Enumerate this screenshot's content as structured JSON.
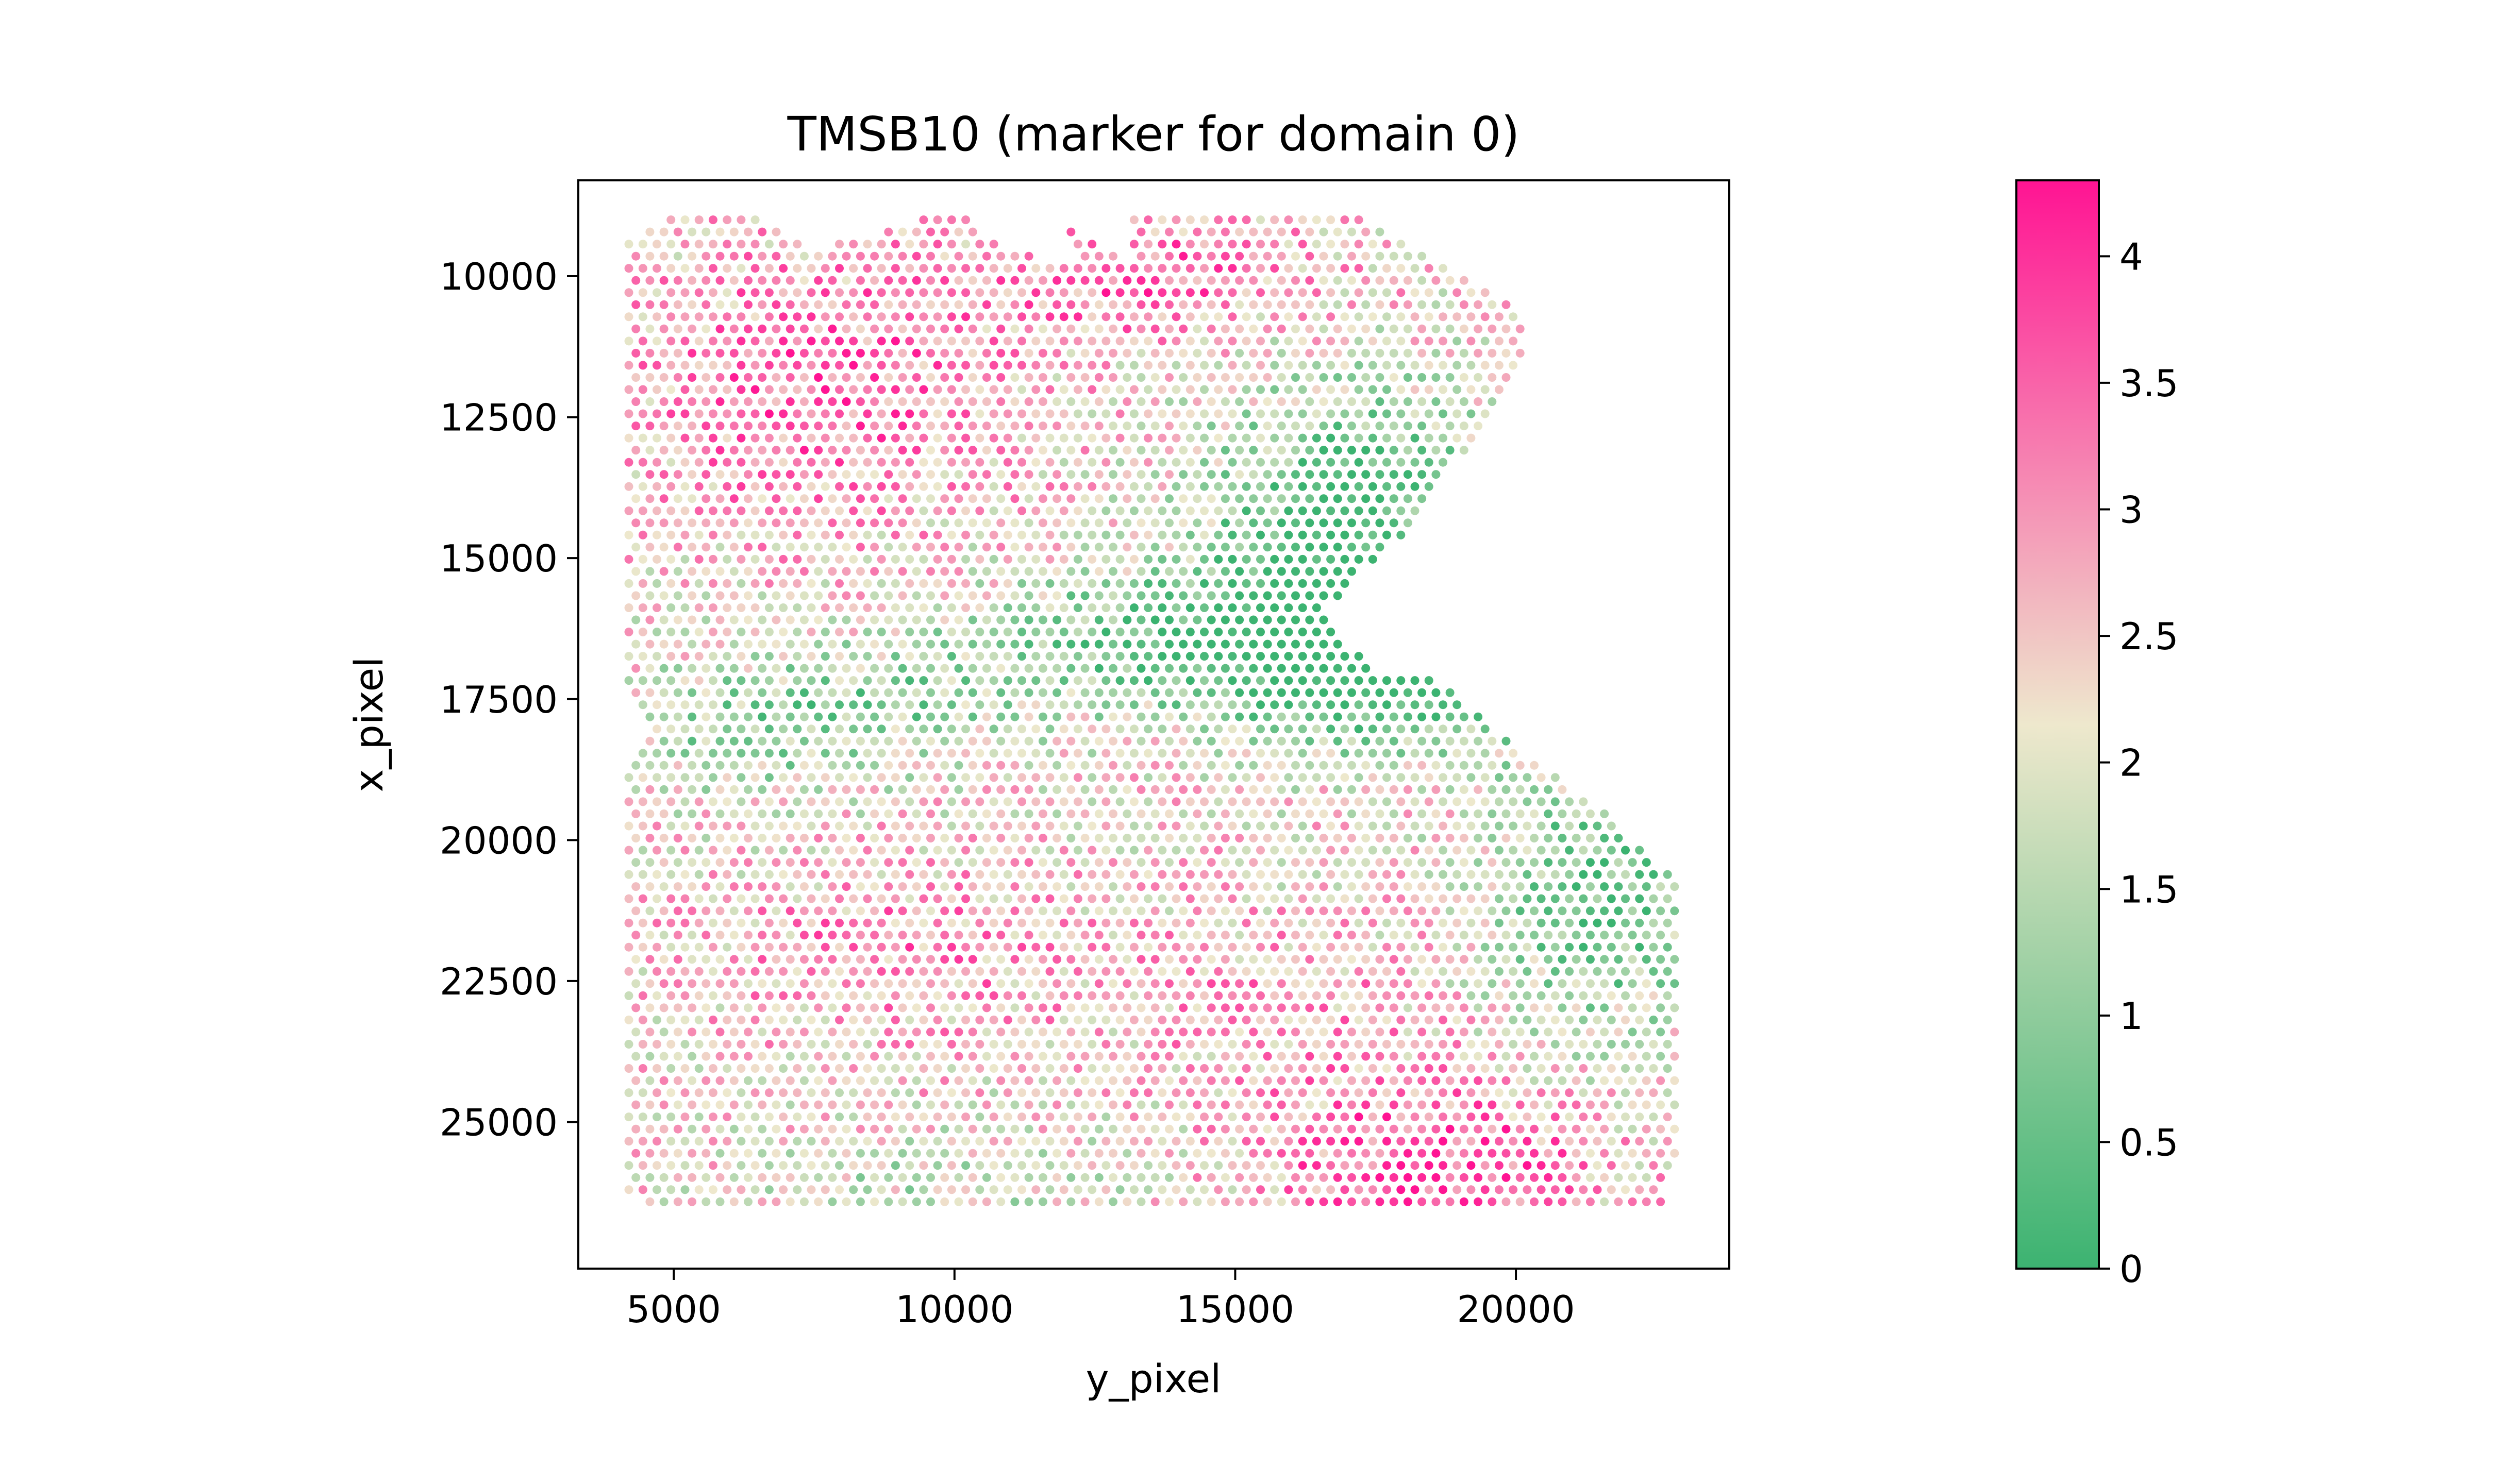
{
  "chart_data": {
    "type": "scatter",
    "title": "TMSB10 (marker for domain 0)",
    "xlabel": "y_pixel",
    "ylabel": "x_pixel",
    "xlim": [
      3300,
      23800
    ],
    "ylim": [
      27600,
      8300
    ],
    "y_inverted": true,
    "grid": false,
    "legend": "none",
    "x_ticks": [
      {
        "value": 5000,
        "label": "5000"
      },
      {
        "value": 10000,
        "label": "10000"
      },
      {
        "value": 15000,
        "label": "15000"
      },
      {
        "value": 20000,
        "label": "20000"
      }
    ],
    "y_ticks": [
      {
        "value": 10000,
        "label": "10000"
      },
      {
        "value": 12500,
        "label": "12500"
      },
      {
        "value": 15000,
        "label": "15000"
      },
      {
        "value": 17500,
        "label": "17500"
      },
      {
        "value": 20000,
        "label": "20000"
      },
      {
        "value": 22500,
        "label": "22500"
      },
      {
        "value": 25000,
        "label": "25000"
      }
    ],
    "colorbar": {
      "min": 0,
      "max": 4.3,
      "colors": [
        "#3cb371",
        "#eee8cd",
        "#ff1493"
      ],
      "ticks": [
        {
          "value": 0,
          "label": "0"
        },
        {
          "value": 0.5,
          "label": "0.5"
        },
        {
          "value": 1,
          "label": "1"
        },
        {
          "value": 1.5,
          "label": "1.5"
        },
        {
          "value": 2,
          "label": "2"
        },
        {
          "value": 2.5,
          "label": "2.5"
        },
        {
          "value": 3,
          "label": "3"
        },
        {
          "value": 3.5,
          "label": "3.5"
        },
        {
          "value": 4,
          "label": "4"
        }
      ]
    },
    "point_grid": {
      "x_step": 250,
      "y_step": 430,
      "row_start": 9000,
      "row_end": 26500
    },
    "tissue_outline": [
      [
        4200,
        9300
      ],
      [
        4900,
        9000
      ],
      [
        6600,
        9000
      ],
      [
        7500,
        9500
      ],
      [
        8000,
        9400
      ],
      [
        9300,
        9000
      ],
      [
        10300,
        9000
      ],
      [
        10700,
        9400
      ],
      [
        12000,
        9800
      ],
      [
        12300,
        9600
      ],
      [
        12000,
        9100
      ],
      [
        13100,
        9800
      ],
      [
        13100,
        9000
      ],
      [
        17400,
        9000
      ],
      [
        20200,
        10700
      ],
      [
        20200,
        11500
      ],
      [
        18000,
        14600
      ],
      [
        16500,
        16000
      ],
      [
        17500,
        17000
      ],
      [
        18500,
        17000
      ],
      [
        20000,
        18400
      ],
      [
        21500,
        19400
      ],
      [
        22900,
        20800
      ],
      [
        22900,
        25800
      ],
      [
        22500,
        26600
      ],
      [
        4600,
        26600
      ],
      [
        4200,
        26200
      ],
      [
        4200,
        18700
      ],
      [
        4600,
        18100
      ],
      [
        4200,
        17200
      ]
    ],
    "expression_field": {
      "base": 2.3,
      "jitter": 0.5,
      "zones": [
        {
          "x": 7500,
          "y": 12000,
          "sx": 3500,
          "sy": 2500,
          "value": 1.2
        },
        {
          "x": 13500,
          "y": 10000,
          "sx": 3500,
          "sy": 1200,
          "value": 1.1
        },
        {
          "x": 17000,
          "y": 14500,
          "sx": 2500,
          "sy": 2500,
          "value": -2.4
        },
        {
          "x": 14500,
          "y": 16400,
          "sx": 4000,
          "sy": 1200,
          "value": -2.0
        },
        {
          "x": 18000,
          "y": 17500,
          "sx": 3000,
          "sy": 1000,
          "value": -1.7
        },
        {
          "x": 21500,
          "y": 21000,
          "sx": 2000,
          "sy": 2500,
          "value": -1.8
        },
        {
          "x": 6500,
          "y": 18000,
          "sx": 2500,
          "sy": 1200,
          "value": -1.2
        },
        {
          "x": 9500,
          "y": 17500,
          "sx": 2500,
          "sy": 1100,
          "value": -0.8
        },
        {
          "x": 18500,
          "y": 25800,
          "sx": 3000,
          "sy": 1500,
          "value": 1.6
        },
        {
          "x": 9000,
          "y": 22000,
          "sx": 3500,
          "sy": 1500,
          "value": 0.8
        },
        {
          "x": 16000,
          "y": 23000,
          "sx": 3000,
          "sy": 1500,
          "value": 0.6
        },
        {
          "x": 10000,
          "y": 26000,
          "sx": 3500,
          "sy": 800,
          "value": -0.7
        }
      ]
    }
  }
}
